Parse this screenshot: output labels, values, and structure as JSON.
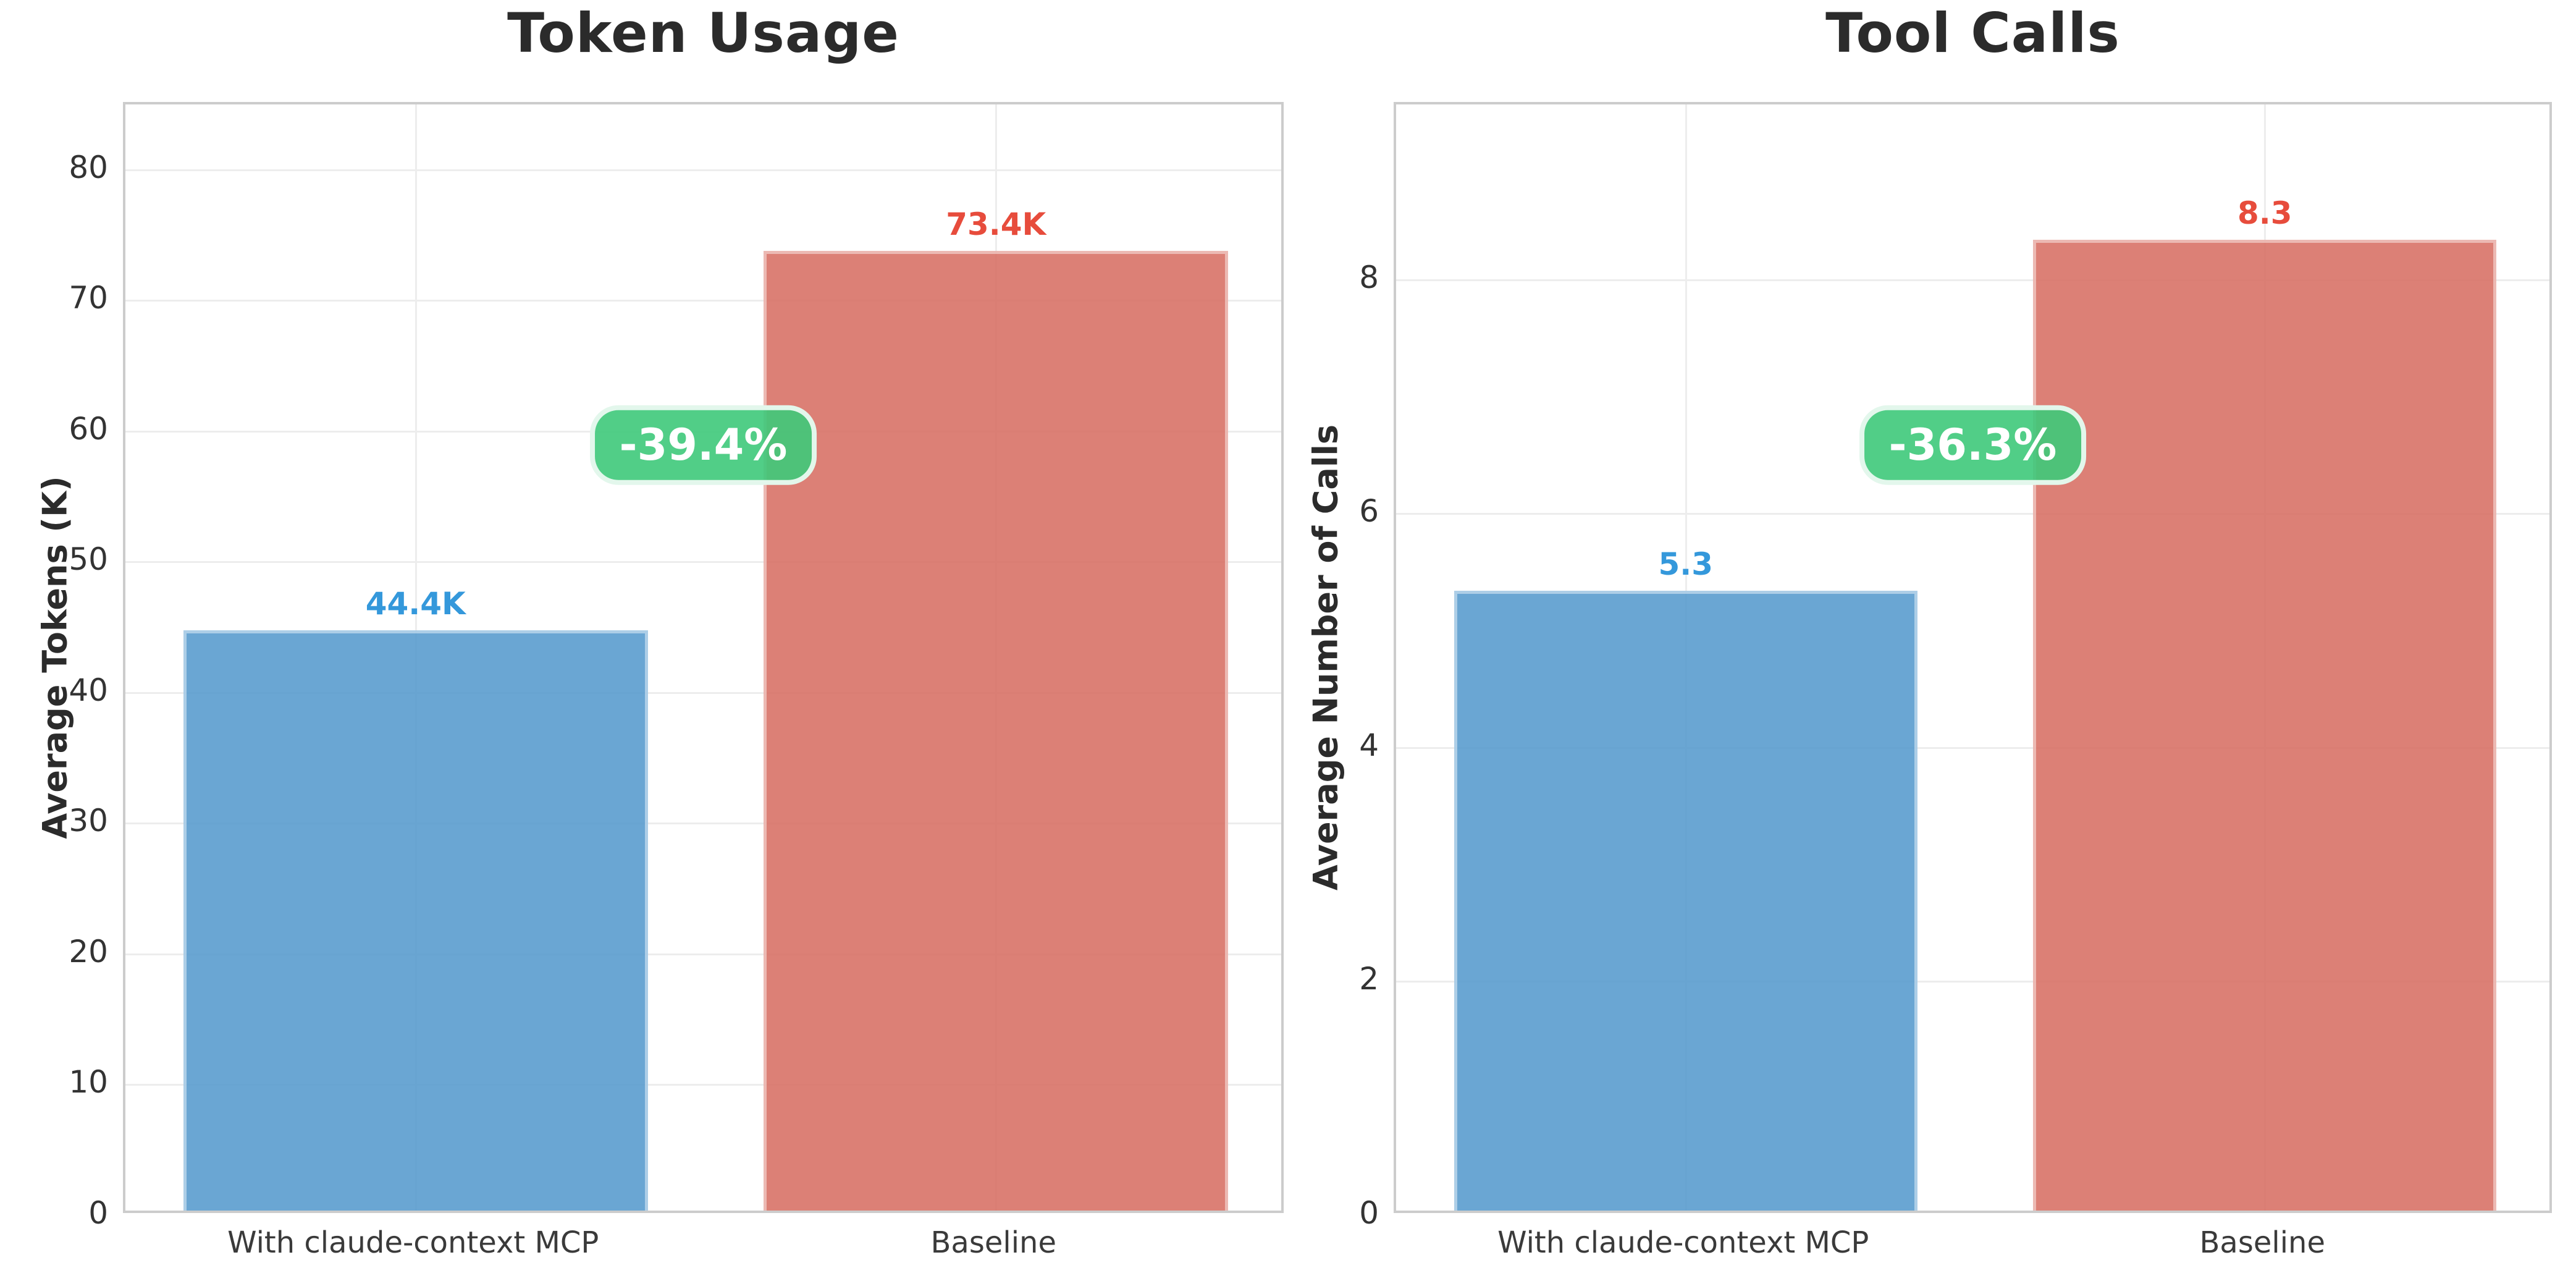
{
  "chart_data": [
    {
      "type": "bar",
      "title": "Token Usage",
      "ylabel": "Average Tokens (K)",
      "xlabel": "",
      "categories": [
        "With claude-context MCP",
        "Baseline"
      ],
      "values": [
        44.4,
        73.4
      ],
      "value_labels": [
        "44.4K",
        "73.4K"
      ],
      "value_label_colors": [
        "#3498db",
        "#e74c3c"
      ],
      "bar_colors": [
        "rgba(80,150,203,0.85)",
        "rgba(214,106,94,0.85)"
      ],
      "yticks": [
        0,
        10,
        20,
        30,
        40,
        50,
        60,
        70,
        80
      ],
      "ylim": [
        0,
        85
      ],
      "annotation": {
        "label": "-39.4%"
      },
      "grid": true,
      "legend": "none"
    },
    {
      "type": "bar",
      "title": "Tool Calls",
      "ylabel": "Average Number of Calls",
      "xlabel": "",
      "categories": [
        "With claude-context MCP",
        "Baseline"
      ],
      "values": [
        5.3,
        8.3
      ],
      "value_labels": [
        "5.3",
        "8.3"
      ],
      "value_label_colors": [
        "#3498db",
        "#e74c3c"
      ],
      "bar_colors": [
        "rgba(80,150,203,0.85)",
        "rgba(214,106,94,0.85)"
      ],
      "yticks": [
        0,
        2,
        4,
        6,
        8
      ],
      "ylim": [
        0,
        9.5
      ],
      "annotation": {
        "label": "-36.3%"
      },
      "grid": true,
      "legend": "none"
    }
  ],
  "style": {
    "background": "#ffffff",
    "title_color": "#2b2b2b",
    "axis_label_color": "#2b2b2b",
    "tick_label_color": "#333333",
    "x_tick_label_color": "#3a3a3a",
    "grid_color": "#ededed",
    "spine_color": "#cccccc",
    "badge_bg": "rgba(62,201,122,0.9)",
    "badge_border": "rgba(235,250,241,0.95)",
    "badge_text_color": "#ffffff"
  }
}
